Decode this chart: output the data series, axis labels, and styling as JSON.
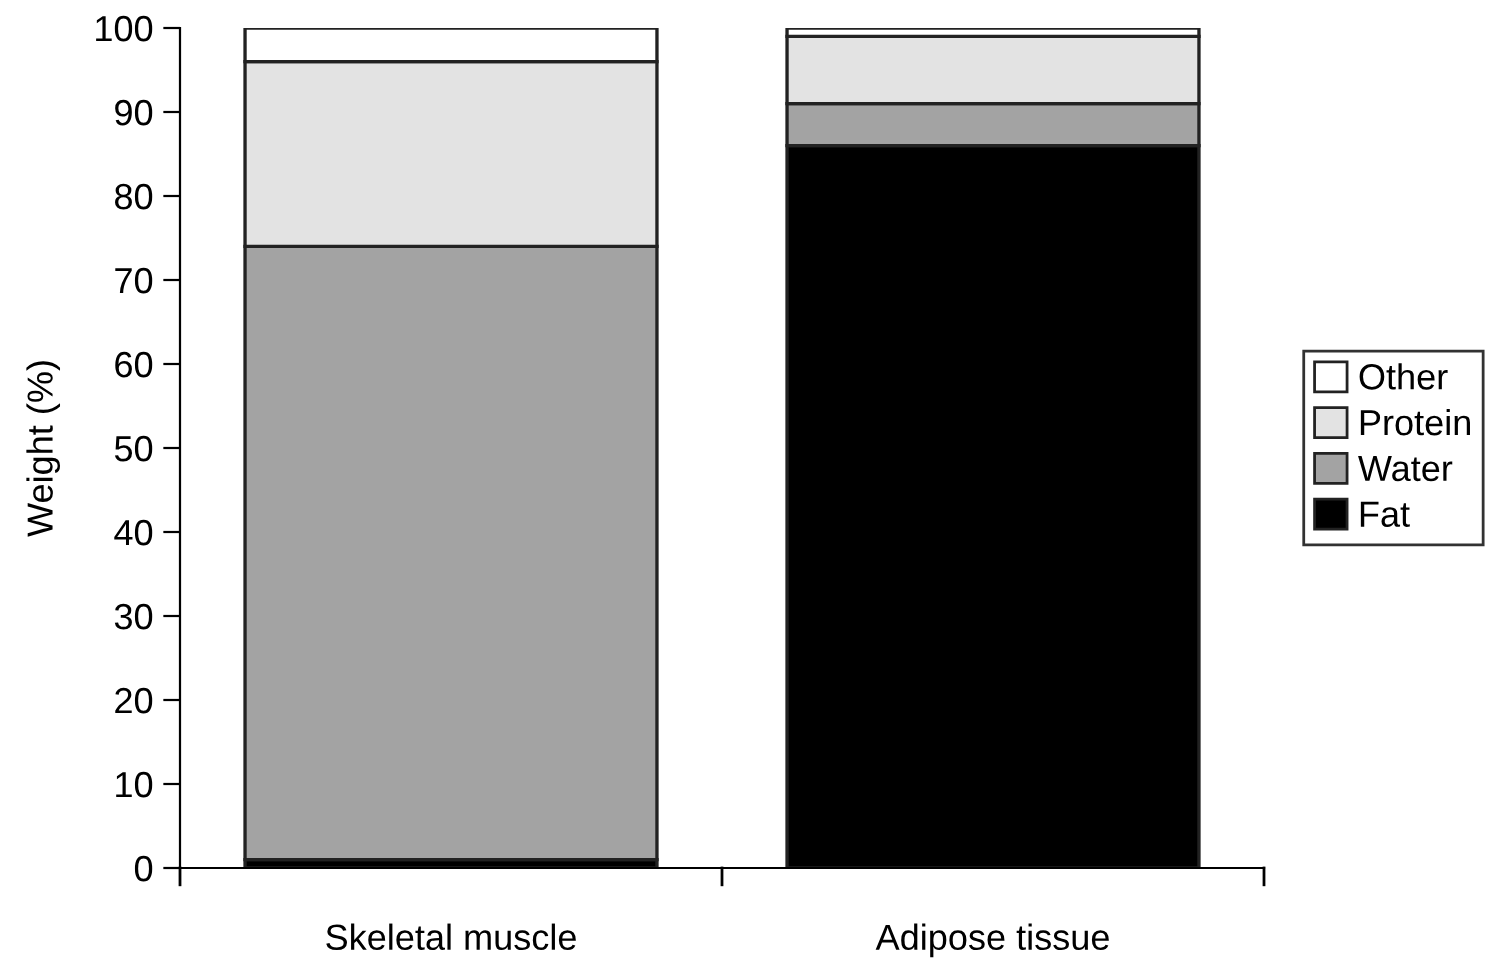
{
  "chart_data": {
    "type": "bar",
    "stacked": true,
    "ylabel": "Weight (%)",
    "categories": [
      "Skeletal muscle",
      "Adipose tissue"
    ],
    "series": [
      {
        "name": "Fat",
        "color": "#000000",
        "values": [
          1,
          86
        ]
      },
      {
        "name": "Water",
        "color": "#a3a3a3",
        "values": [
          73,
          5
        ]
      },
      {
        "name": "Protein",
        "color": "#e3e3e3",
        "values": [
          22,
          8
        ]
      },
      {
        "name": "Other",
        "color": "#ffffff",
        "values": [
          4,
          1
        ]
      }
    ],
    "ylim": [
      0,
      100
    ],
    "yticks": [
      0,
      10,
      20,
      30,
      40,
      50,
      60,
      70,
      80,
      90,
      100
    ],
    "grid": false,
    "legend": "right"
  }
}
